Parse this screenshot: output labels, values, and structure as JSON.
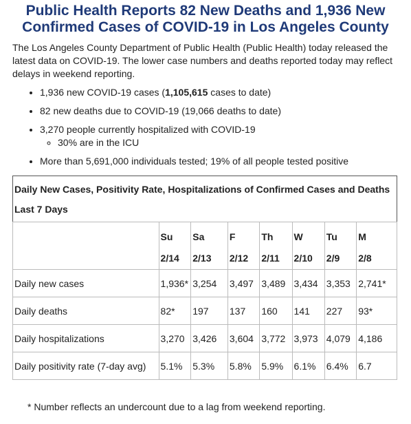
{
  "header": {
    "title": "Public Health Reports 82 New Deaths and 1,936 New Confirmed Cases of COVID-19 in Los Angeles County"
  },
  "intro": "The Los Angeles County Department of Public Health (Public Health) today released the latest data on COVID-19. The lower case numbers and deaths reported today may reflect delays in weekend reporting.",
  "bullets": [
    {
      "before": "1,936 new COVID-19 cases (",
      "bold": "1,105,615",
      "after": " cases to date)"
    },
    {
      "text": "82 new deaths due to COVID-19 (19,066 deaths to date)"
    },
    {
      "text": "3,270 people currently hospitalized with COVID-19",
      "sub": [
        "30% are in the ICU"
      ]
    },
    {
      "text": "More than 5,691,000 individuals tested; 19% of all people tested positive"
    }
  ],
  "table": {
    "title": "Daily New Cases, Positivity Rate, Hospitalizations of Confirmed Cases and Deaths",
    "subtitle": "Last 7 Days",
    "days": [
      "Su",
      "Sa",
      "F",
      "Th",
      "W",
      "Tu",
      "M"
    ],
    "dates": [
      "2/14",
      "2/13",
      "2/12",
      "2/11",
      "2/10",
      "2/9",
      "2/8"
    ],
    "rows": [
      {
        "label": "Daily new cases",
        "values": [
          "1,936*",
          "3,254",
          "3,497",
          "3,489",
          "3,434",
          "3,353",
          "2,741*"
        ]
      },
      {
        "label": "Daily deaths",
        "values": [
          "82*",
          "197",
          "137",
          "160",
          "141",
          "227",
          "93*"
        ]
      },
      {
        "label": "Daily hospitalizations",
        "values": [
          "3,270",
          "3,426",
          "3,604",
          "3,772",
          "3,973",
          "4,079",
          "4,186"
        ]
      },
      {
        "label": "Daily positivity rate (7-day avg)",
        "values": [
          "5.1%",
          "5.3%",
          "5.8%",
          "5.9%",
          "6.1%",
          "6.4%",
          "6.7"
        ]
      }
    ]
  },
  "footnote": "* Number reflects an undercount due to a lag from weekend reporting."
}
